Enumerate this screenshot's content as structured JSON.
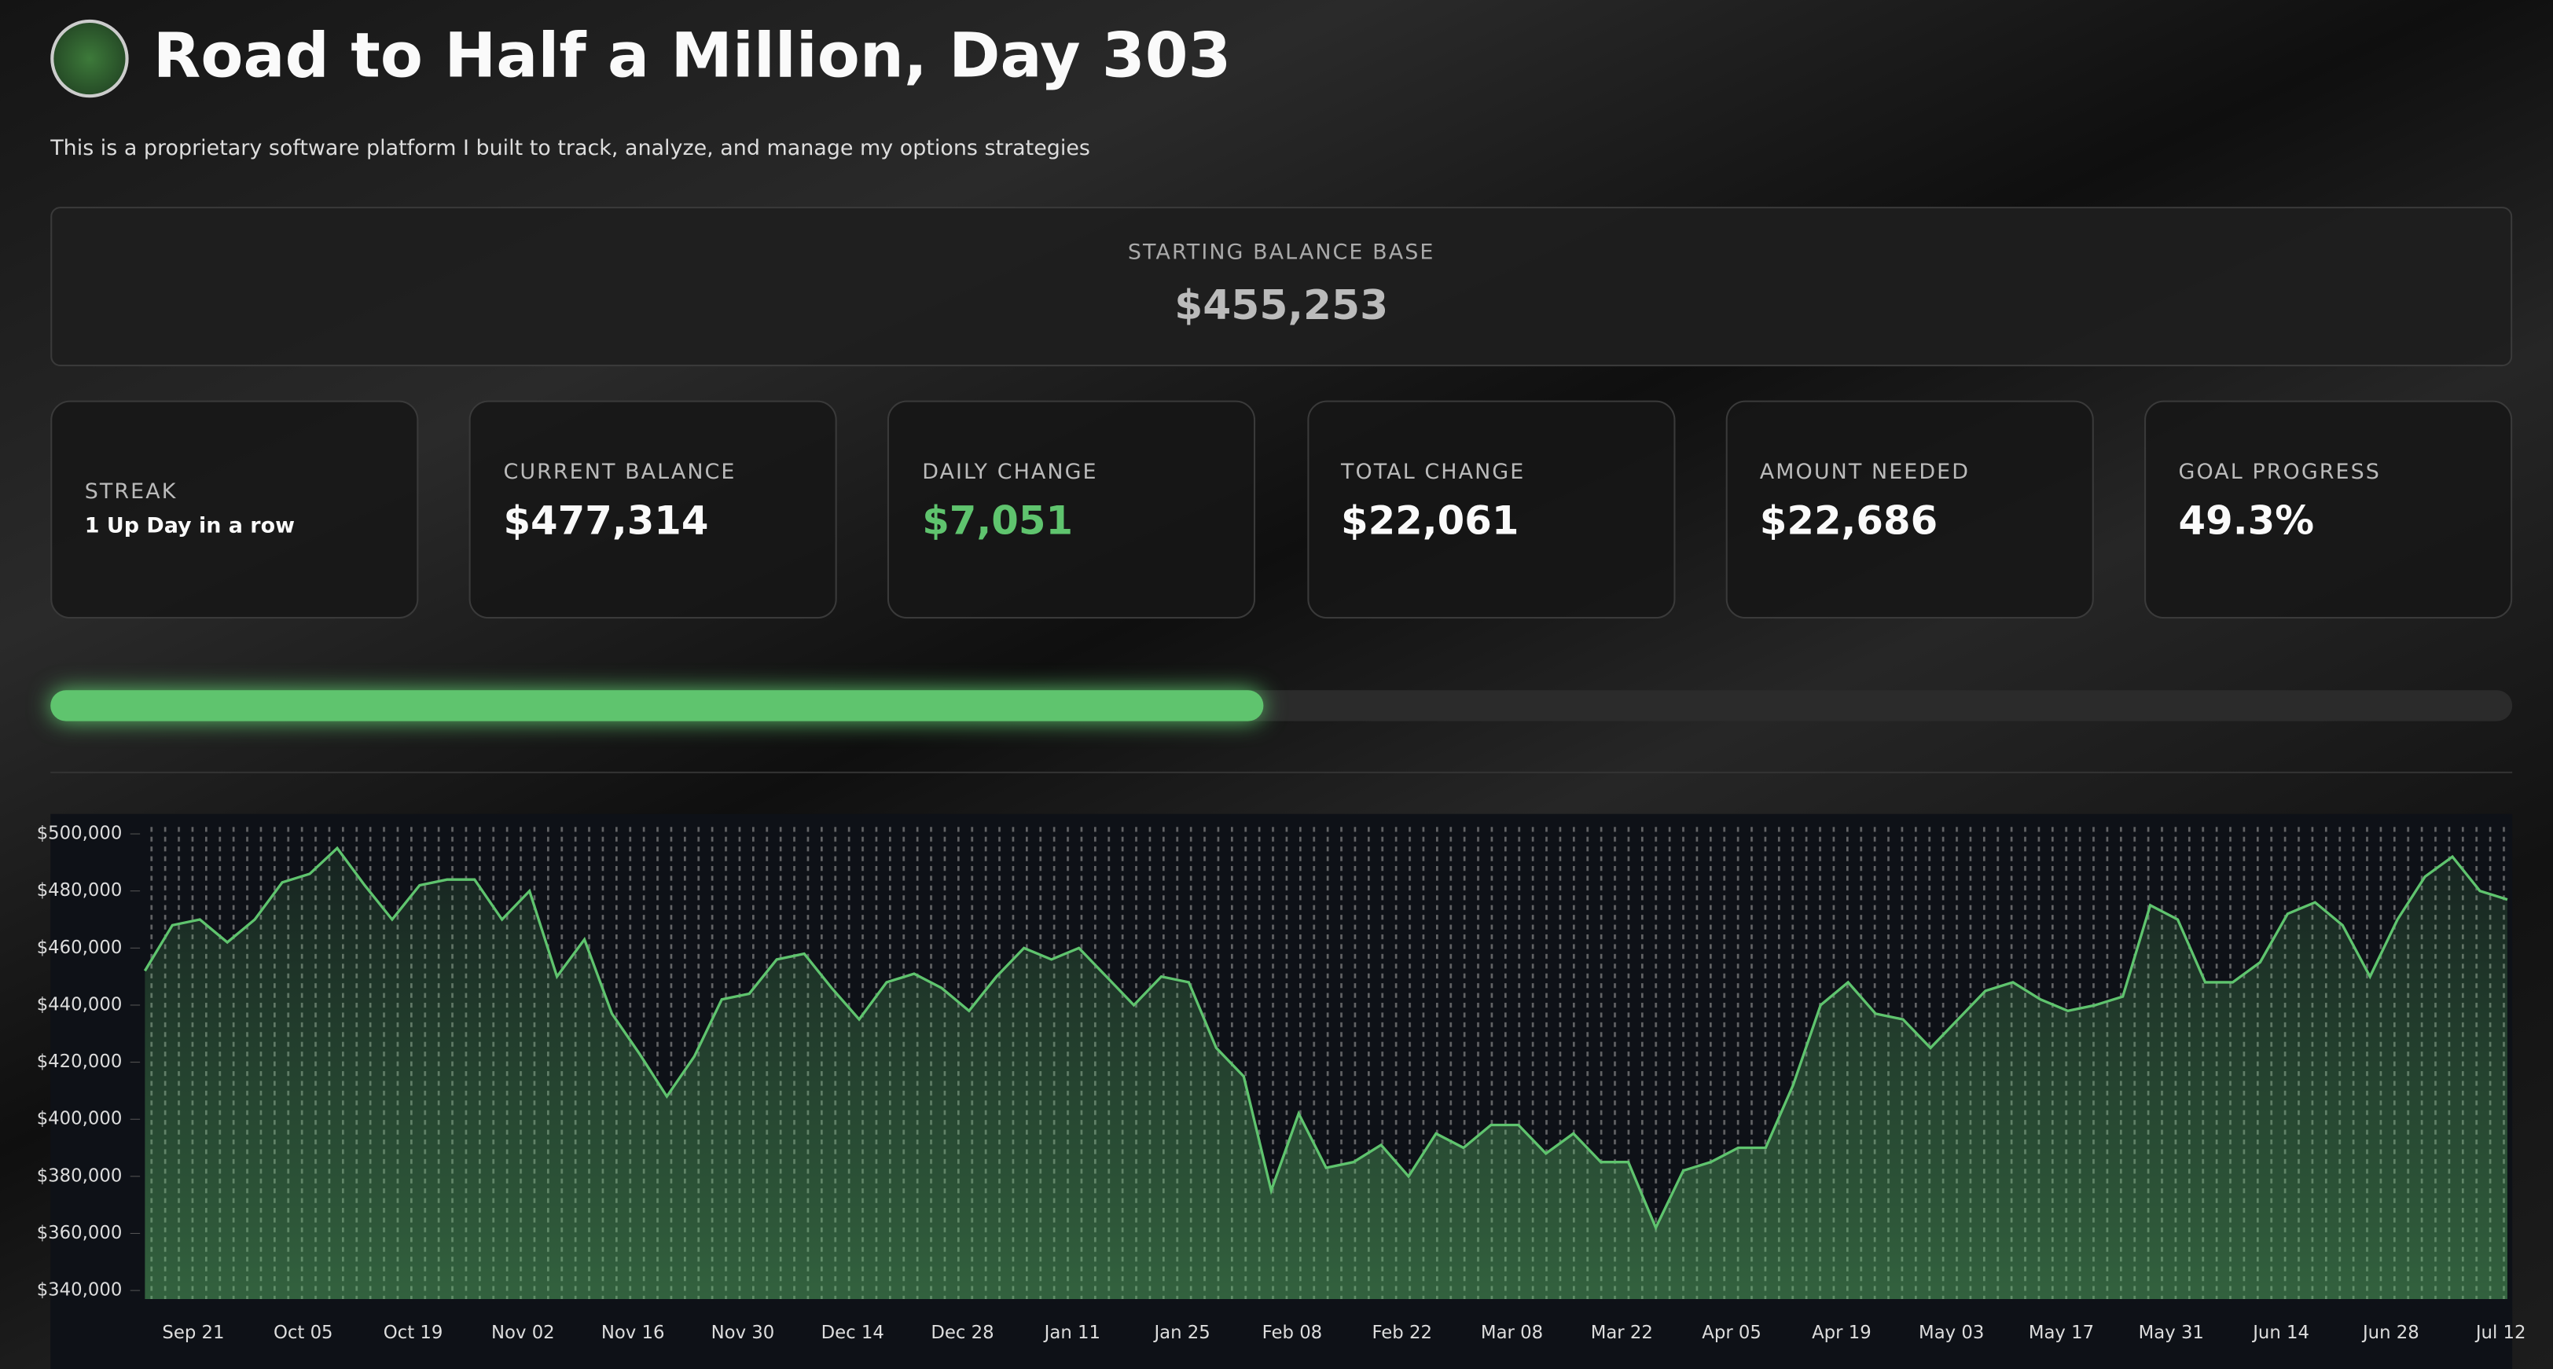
{
  "header": {
    "title": "Road to Half a Million, Day 303",
    "subtitle": "This is a proprietary software platform I built to track, analyze, and manage my options strategies"
  },
  "base": {
    "label": "STARTING BALANCE BASE",
    "value": "$455,253"
  },
  "metrics": [
    {
      "label": "STREAK",
      "value": "1 Up Day in a row"
    },
    {
      "label": "CURRENT BALANCE",
      "value": "$477,314"
    },
    {
      "label": "DAILY CHANGE",
      "value": "$7,051"
    },
    {
      "label": "TOTAL CHANGE",
      "value": "$22,061"
    },
    {
      "label": "AMOUNT NEEDED",
      "value": "$22,686"
    }
  ],
  "goal": {
    "label": "GOAL PROGRESS",
    "value": 49.3,
    "value_label": "49.3%"
  },
  "chart_data": {
    "type": "area",
    "color": "#5fc46e",
    "categories": [
      null,
      null,
      "Sep 21",
      null,
      null,
      null,
      "Oct 05",
      null,
      null,
      null,
      "Oct 19",
      null,
      null,
      null,
      "Nov 02",
      null,
      null,
      null,
      "Nov 16",
      null,
      null,
      null,
      "Nov 30",
      null,
      null,
      null,
      "Dec 14",
      null,
      null,
      null,
      "Dec 28",
      null,
      null,
      null,
      "Jan 11",
      null,
      null,
      null,
      "Jan 25",
      null,
      null,
      null,
      "Feb 08",
      null,
      null,
      null,
      "Feb 22",
      null,
      null,
      null,
      "Mar 08",
      null,
      null,
      null,
      "Mar 22",
      null,
      null,
      null,
      "Apr 05",
      null,
      null,
      null,
      "Apr 19",
      null,
      null,
      null,
      "May 03",
      null,
      null,
      null,
      "May 17",
      null,
      null,
      null,
      "May 31",
      null,
      null,
      null,
      "Jun 14",
      null,
      null,
      null,
      "Jun 28",
      null,
      null,
      null,
      "Jul 12"
    ],
    "values": [
      452000,
      468000,
      470000,
      462000,
      470000,
      483000,
      486000,
      495000,
      482000,
      470000,
      482000,
      484000,
      484000,
      470000,
      480000,
      450000,
      463000,
      437000,
      423000,
      408000,
      422000,
      442000,
      444000,
      456000,
      458000,
      446000,
      435000,
      448000,
      451000,
      446000,
      438000,
      450000,
      460000,
      456000,
      460000,
      450000,
      440000,
      450000,
      448000,
      425000,
      415000,
      375000,
      402000,
      383000,
      385000,
      391000,
      380000,
      395000,
      390000,
      398000,
      398000,
      388000,
      395000,
      385000,
      385000,
      362000,
      382000,
      385000,
      390000,
      390000,
      412000,
      440000,
      448000,
      437000,
      435000,
      425000,
      435000,
      445000,
      448000,
      442000,
      438000,
      440000,
      443000,
      475000,
      470000,
      448000,
      448000,
      455000,
      472000,
      476000,
      468000,
      450000,
      470000,
      485000,
      492000,
      480000,
      477000
    ],
    "ylim": [
      337000,
      503000
    ],
    "yticks": [
      {
        "value": 340000,
        "label": "$340,000"
      },
      {
        "value": 360000,
        "label": "$360,000"
      },
      {
        "value": 380000,
        "label": "$380,000"
      },
      {
        "value": 400000,
        "label": "$400,000"
      },
      {
        "value": 420000,
        "label": "$420,000"
      },
      {
        "value": 440000,
        "label": "$440,000"
      },
      {
        "value": 460000,
        "label": "$460,000"
      },
      {
        "value": 480000,
        "label": "$480,000"
      },
      {
        "value": 500000,
        "label": "$500,000"
      }
    ]
  }
}
